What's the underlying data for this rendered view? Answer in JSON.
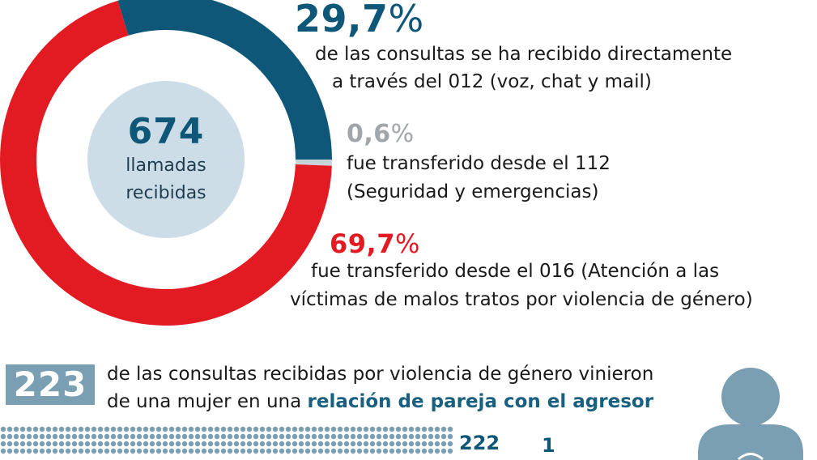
{
  "chart_data": {
    "type": "pie",
    "title": "",
    "total": "674",
    "total_label_line1": "llamadas",
    "total_label_line2": "recibidas",
    "slices": [
      {
        "value": 29.7,
        "color": "#0e5778"
      },
      {
        "value": 0.6,
        "color": "#c9d3da"
      },
      {
        "value": 69.7,
        "color": "#e21a22"
      }
    ],
    "annotations": [
      {
        "value_text": "29,7",
        "symbol": "%",
        "color": "#0e5778",
        "line1": "de las consultas se ha recibido directamente",
        "line2": "a través del 012 (voz, chat y mail)"
      },
      {
        "value_text": "0,6",
        "symbol": "%",
        "color": "#a0a6aa",
        "line1": "fue transferido desde el 112",
        "line2": "(Seguridad y emergencias)"
      },
      {
        "value_text": "69,7",
        "symbol": "%",
        "color": "#e21a22",
        "line1": "fue transferido desde el 016 (Atención a las",
        "line2": "víctimas de malos tratos por violencia de género)"
      }
    ]
  },
  "partner_section": {
    "number": "223",
    "line1": "de las consultas recibidas por violencia de género vinieron",
    "line2_prefix": "de una mujer en una ",
    "line2_highlight": "relación de pareja con el agresor",
    "count_a": "222",
    "count_b": "1",
    "dot_color": "#7a9fb3",
    "person_icon": "person-icon"
  }
}
